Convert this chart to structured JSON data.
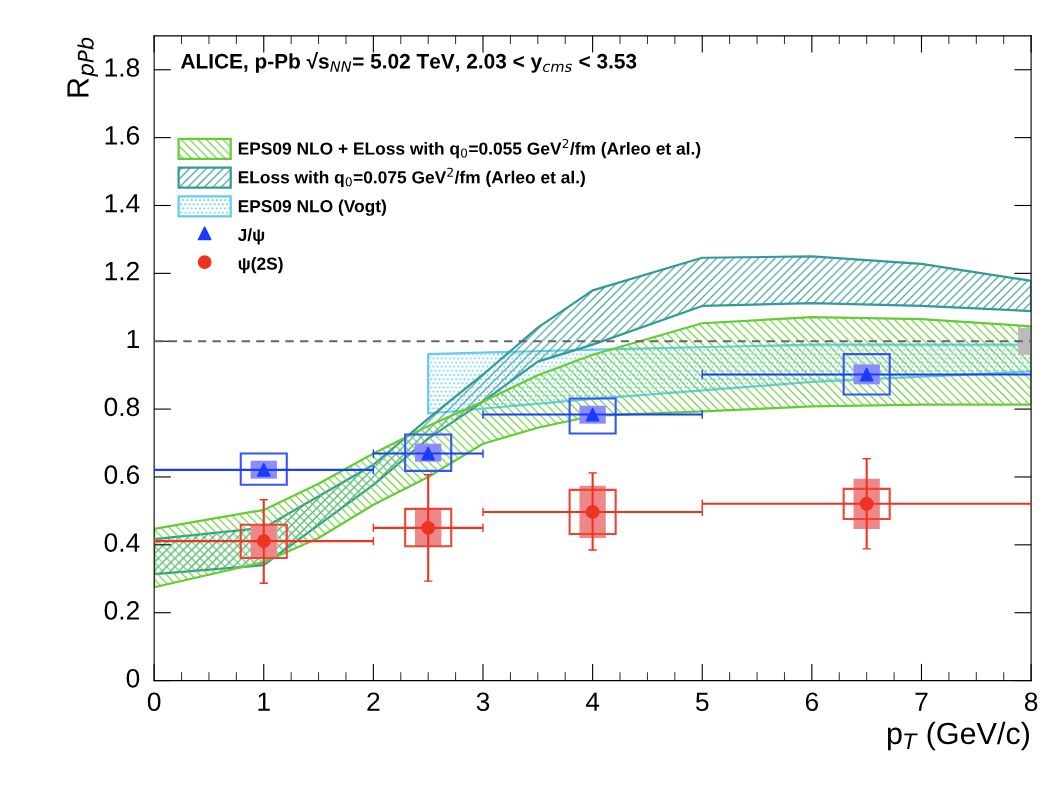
{
  "chart_data": {
    "type": "scatter",
    "title": "ALICE, p-Pb √s$_{NN}$= 5.02 TeV, 2.03 < y$_{cms}$ < 3.53",
    "xlabel": "p$_{T}$ (GeV/c)",
    "ylabel": "R$_{pPb}$",
    "xlim": [
      0,
      8
    ],
    "ylim": [
      0,
      1.9
    ],
    "xticks": [
      0,
      1,
      2,
      3,
      4,
      5,
      6,
      7,
      8
    ],
    "yticks": [
      0,
      0.2,
      0.4,
      0.6,
      0.8,
      1,
      1.2,
      1.4,
      1.6,
      1.8
    ],
    "grid": false,
    "legend": "top left",
    "ref_lines": [
      {
        "axis": "y",
        "value": 1,
        "color": "#666666",
        "line_style": "dashed"
      }
    ],
    "series": [
      {
        "type": "line",
        "name": "EPS09 NLO + ELoss with q$_{0}$=0.055 GeV$^{2}$/fm (Arleo et al.)",
        "color": "#66cc33",
        "x": [
          0,
          1,
          1.5,
          2,
          2.5,
          3,
          3.5,
          4,
          5,
          6,
          7,
          8
        ],
        "values": [
          null,
          null,
          null,
          null,
          null,
          null,
          null,
          null,
          null,
          null,
          null,
          null
        ],
        "upper": [
          0.447,
          0.503,
          0.58,
          0.669,
          0.75,
          0.822,
          0.9,
          0.96,
          1.053,
          1.071,
          1.065,
          1.044
        ],
        "lower": [
          0.275,
          0.349,
          0.42,
          0.518,
          0.6,
          0.698,
          0.745,
          0.78,
          0.793,
          0.808,
          0.813,
          0.813
        ]
      },
      {
        "type": "line",
        "name": "ELoss with q$_{0}$=0.075 GeV$^{2}$/fm (Arleo et al.)",
        "color": "#339999",
        "x": [
          0,
          1,
          2,
          2.5,
          3,
          3.5,
          4,
          5,
          6,
          7,
          8
        ],
        "values": [
          null,
          null,
          null,
          null,
          null,
          null,
          null,
          null,
          null,
          null,
          null
        ],
        "upper": [
          0.417,
          0.45,
          0.636,
          0.772,
          0.902,
          1.04,
          1.15,
          1.246,
          1.25,
          1.228,
          1.178
        ],
        "lower": [
          0.314,
          0.34,
          0.577,
          0.713,
          0.822,
          0.94,
          0.99,
          1.104,
          1.112,
          1.104,
          1.089
        ]
      },
      {
        "type": "line",
        "name": "EPS09 NLO (Vogt)",
        "color": "#66ccee",
        "x": [
          2.5,
          4,
          6,
          8
        ],
        "values": [
          null,
          null,
          null,
          null
        ],
        "upper": [
          0.962,
          0.975,
          0.99,
          0.99
        ],
        "lower": [
          0.787,
          0.83,
          0.88,
          0.911
        ]
      },
      {
        "type": "bar",
        "color": "#bbbbbb",
        "x": [
          8
        ],
        "base": [
          0.96
        ],
        "values": [
          0.08
        ]
      },
      {
        "type": "bar",
        "color": "#8c8cff",
        "x": [
          1,
          2.5,
          4,
          6.5
        ],
        "base": [
          0.595,
          0.645,
          0.757,
          0.873
        ],
        "values": [
          0.053,
          0.053,
          0.053,
          0.059
        ]
      },
      {
        "type": "bar",
        "color": "#3355ff",
        "line_style": "solid",
        "x": [
          1,
          2.5,
          4,
          6.5
        ],
        "base": [
          0.577,
          0.618,
          0.728,
          0.843
        ],
        "values": [
          0.092,
          0.107,
          0.103,
          0.119
        ]
      },
      {
        "type": "bar",
        "color": "#ee8888",
        "x": [
          1,
          2.5,
          4,
          6.5
        ],
        "base": [
          0.361,
          0.396,
          0.42,
          0.447
        ],
        "values": [
          0.098,
          0.11,
          0.154,
          0.148
        ]
      },
      {
        "type": "bar",
        "color": "#ee4433",
        "line_style": "solid",
        "x": [
          1,
          2.5,
          4,
          6.5
        ],
        "base": [
          0.361,
          0.396,
          0.432,
          0.476
        ],
        "values": [
          0.098,
          0.11,
          0.13,
          0.089
        ]
      },
      {
        "name": "J/ψ",
        "color": "#1a3cff",
        "marker": "triangle",
        "x": [
          1,
          2.5,
          4,
          6.5
        ],
        "values": [
          0.621,
          0.669,
          0.784,
          0.902
        ],
        "xerrors": [
          1,
          0.5,
          1,
          1.5
        ]
      },
      {
        "name": "ψ(2S)",
        "color": "#ee3322",
        "marker": "circle",
        "x": [
          1,
          2.5,
          4,
          6.5
        ],
        "values": [
          0.411,
          0.45,
          0.497,
          0.521
        ],
        "xerrors": [
          1,
          0.5,
          1,
          1.5
        ],
        "errors": [
          [
            0.287,
            0.533
          ],
          [
            0.293,
            0.607
          ],
          [
            0.385,
            0.612
          ],
          [
            0.388,
            0.654
          ]
        ]
      }
    ]
  }
}
